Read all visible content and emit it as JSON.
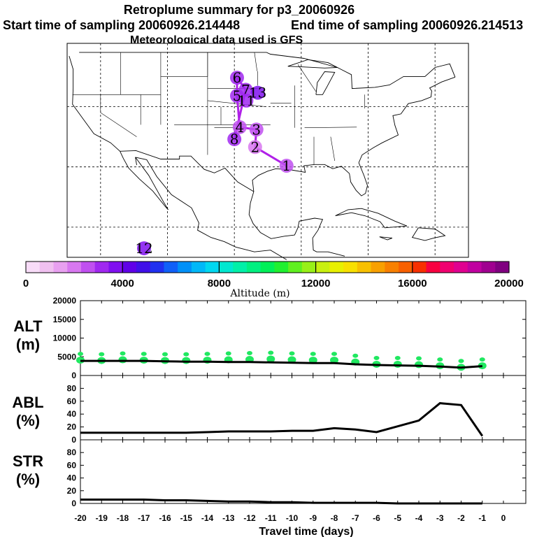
{
  "header": {
    "title": "Retroplume summary for p3_20060926",
    "start_label": "Start time of sampling 20060926.214448",
    "end_label": "End time of sampling 20060926.214513",
    "met_label": "Meteorological data used is GFS"
  },
  "chart_data": [
    {
      "type": "map",
      "title": "Retroplume summary for p3_20060926",
      "description_text": "Meteorological data used is GFS",
      "trajectory_labels": [
        {
          "day": 1,
          "lon": -92.2,
          "lat": 30.2,
          "alt_m": 2500
        },
        {
          "day": 2,
          "lon": -96.9,
          "lat": 33.3,
          "alt_m": 1900
        },
        {
          "day": 3,
          "lon": -96.7,
          "lat": 36.2,
          "alt_m": 2500
        },
        {
          "day": 4,
          "lon": -99.2,
          "lat": 36.6,
          "alt_m": 2700
        },
        {
          "day": 5,
          "lon": -99.6,
          "lat": 41.8,
          "alt_m": 2900
        },
        {
          "day": 6,
          "lon": -99.6,
          "lat": 44.8,
          "alt_m": 3100
        },
        {
          "day": 7,
          "lon": -98.3,
          "lat": 42.8,
          "alt_m": 3200
        },
        {
          "day": 8,
          "lon": -100.0,
          "lat": 34.6,
          "alt_m": 3200
        },
        {
          "day": 11,
          "lon": -98.2,
          "lat": 41.0,
          "alt_m": 3300
        },
        {
          "day": 12,
          "lon": -113.5,
          "lat": 16.5,
          "alt_m": 3500
        },
        {
          "day": 13,
          "lon": -96.5,
          "lat": 42.3,
          "alt_m": 3600
        }
      ],
      "colorbar": {
        "label": "Altitude (m)",
        "min": 0,
        "max": 20000,
        "ticks": [
          0,
          4000,
          8000,
          12000,
          16000,
          20000
        ],
        "colors": [
          "#f8dcf8",
          "#f0c0f0",
          "#e8a0f0",
          "#d878f0",
          "#c050f0",
          "#a028f0",
          "#8010f0",
          "#6000e8",
          "#4010e8",
          "#2030f0",
          "#1060f8",
          "#0090f8",
          "#00b8f8",
          "#00d8f0",
          "#00e8d0",
          "#00f0a8",
          "#00f080",
          "#00f058",
          "#20f030",
          "#60f020",
          "#98f018",
          "#c8f010",
          "#e8f000",
          "#f8e000",
          "#f8c000",
          "#f8a000",
          "#f88000",
          "#f86000",
          "#f83000",
          "#f80040",
          "#f00070",
          "#e00090",
          "#c000a0",
          "#a00090",
          "#800080"
        ]
      }
    },
    {
      "type": "line+scatter",
      "ylabel": "ALT\n(m)",
      "ylim": [
        0,
        20000
      ],
      "yticks": [
        0,
        5000,
        10000,
        15000,
        20000
      ],
      "line": {
        "x": [
          -20,
          -19,
          -18,
          -17,
          -16,
          -15,
          -14,
          -13,
          -12,
          -11,
          -10,
          -9,
          -8,
          -7,
          -6,
          -5,
          -4,
          -3,
          -2,
          -1
        ],
        "y": [
          3900,
          3900,
          3900,
          3900,
          3800,
          3700,
          3700,
          3600,
          3600,
          3500,
          3400,
          3300,
          3300,
          3000,
          2800,
          2700,
          2600,
          2400,
          2100,
          2500
        ]
      },
      "scatter": {
        "x": [
          -20,
          -19,
          -18,
          -17,
          -16,
          -15,
          -14,
          -13,
          -12,
          -11,
          -10,
          -9,
          -8,
          -7,
          -6,
          -5,
          -4,
          -3,
          -2,
          -1
        ],
        "y": [
          4100,
          4000,
          4200,
          4100,
          4000,
          4000,
          4100,
          4200,
          4300,
          4400,
          4200,
          4100,
          4100,
          3600,
          3000,
          3000,
          2900,
          2600,
          2200,
          2600
        ]
      },
      "scatter_color": "#20e860"
    },
    {
      "type": "line",
      "ylabel": "ABL\n(%)",
      "ylim": [
        0,
        100
      ],
      "yticks": [
        0,
        20,
        40,
        60,
        80
      ],
      "x": [
        -20,
        -19,
        -18,
        -17,
        -16,
        -15,
        -14,
        -13,
        -12,
        -11,
        -10,
        -9,
        -8,
        -7,
        -6,
        -5,
        -4,
        -3,
        -2,
        -1
      ],
      "y": [
        11,
        11,
        11,
        11,
        11,
        11,
        12,
        13,
        13,
        13,
        14,
        14,
        18,
        16,
        12,
        21,
        30,
        57,
        54,
        6
      ]
    },
    {
      "type": "line",
      "ylabel": "STR\n(%)",
      "ylim": [
        0,
        100
      ],
      "yticks": [
        0,
        20,
        40,
        60,
        80
      ],
      "x": [
        -20,
        -19,
        -18,
        -17,
        -16,
        -15,
        -14,
        -13,
        -12,
        -11,
        -10,
        -9,
        -8,
        -7,
        -6,
        -5,
        -4,
        -3,
        -2,
        -1
      ],
      "y": [
        6,
        6,
        6,
        6,
        5,
        5,
        4,
        3,
        3,
        2,
        2,
        1,
        1,
        1,
        1,
        0,
        0,
        0,
        0,
        0
      ],
      "xlabel": "Travel time (days)",
      "xticks": [
        -20,
        -19,
        -18,
        -17,
        -16,
        -15,
        -14,
        -13,
        -12,
        -11,
        -10,
        -9,
        -8,
        -7,
        -6,
        -5,
        -4,
        -3,
        -2,
        -1,
        0
      ]
    }
  ]
}
